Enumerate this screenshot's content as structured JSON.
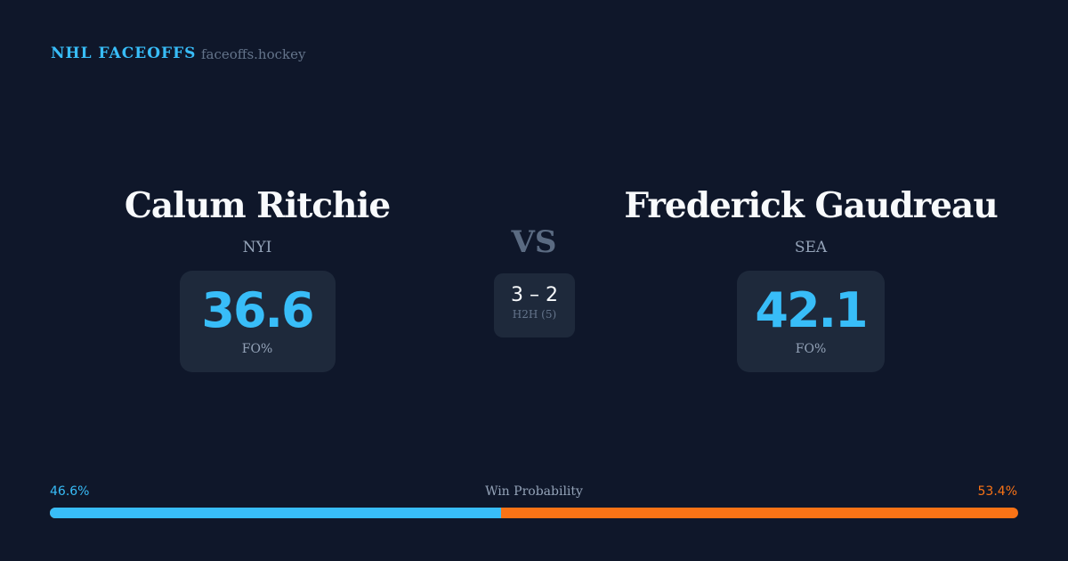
{
  "header": {
    "brand": "NHL FACEOFFS",
    "site": "faceoffs.hockey"
  },
  "left": {
    "name": "Calum Ritchie",
    "team": "NYI",
    "fo_pct": "36.6",
    "fo_label": "FO%"
  },
  "right": {
    "name": "Frederick Gaudreau",
    "team": "SEA",
    "fo_pct": "42.1",
    "fo_label": "FO%"
  },
  "center": {
    "vs": "VS",
    "h2h_score": "3 – 2",
    "h2h_label": "H2H (5)"
  },
  "win_probability": {
    "label": "Win Probability",
    "left": "46.6%",
    "right": "53.4%",
    "left_value": 46.6,
    "colors": {
      "left": "#38bdf8",
      "right": "#f97316"
    }
  }
}
